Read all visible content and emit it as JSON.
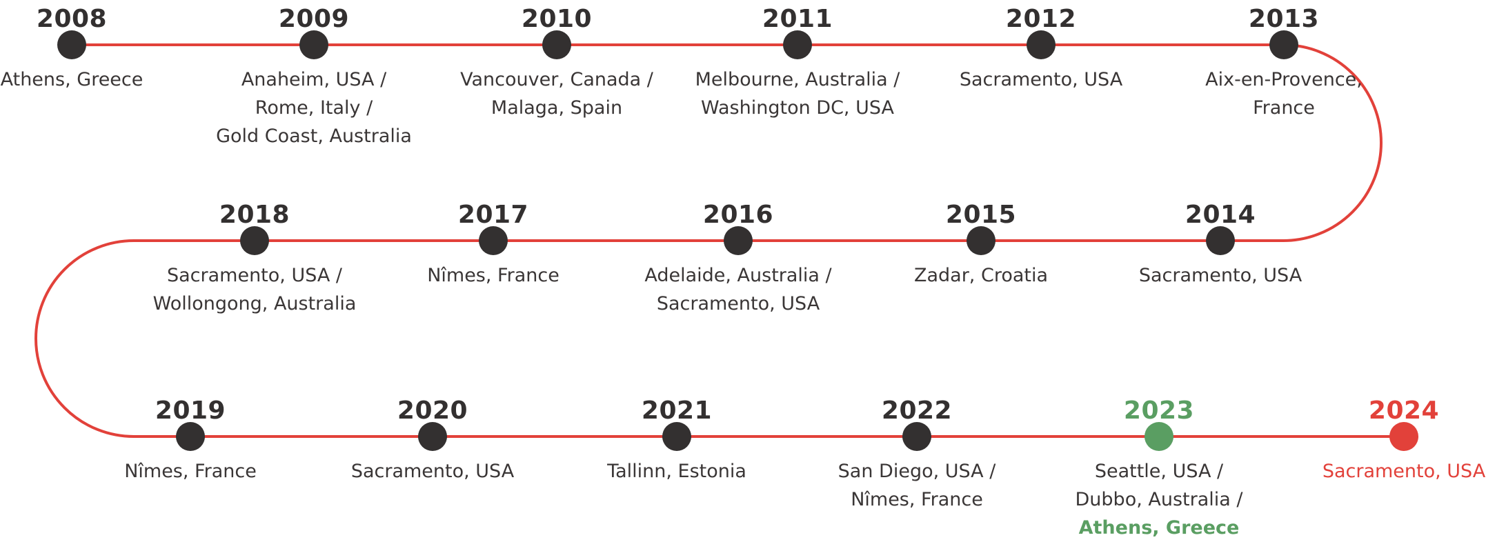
{
  "colors": {
    "line": "#e2413a",
    "node": "#333030",
    "green": "#5a9e62",
    "red": "#e2413a"
  },
  "events": [
    {
      "year": "2008",
      "locations": [
        "Athens, Greece"
      ]
    },
    {
      "year": "2009",
      "locations": [
        "Anaheim, USA /",
        "Rome, Italy /",
        "Gold Coast, Australia"
      ]
    },
    {
      "year": "2010",
      "locations": [
        "Vancouver, Canada /",
        "Malaga, Spain"
      ]
    },
    {
      "year": "2011",
      "locations": [
        "Melbourne, Australia /",
        "Washington DC, USA"
      ]
    },
    {
      "year": "2012",
      "locations": [
        "Sacramento, USA"
      ]
    },
    {
      "year": "2013",
      "locations": [
        "Aix-en-Provence,",
        "France"
      ]
    },
    {
      "year": "2014",
      "locations": [
        "Sacramento, USA"
      ]
    },
    {
      "year": "2015",
      "locations": [
        "Zadar, Croatia"
      ]
    },
    {
      "year": "2016",
      "locations": [
        "Adelaide, Australia /",
        "Sacramento, USA"
      ]
    },
    {
      "year": "2017",
      "locations": [
        "Nîmes, France"
      ]
    },
    {
      "year": "2018",
      "locations": [
        "Sacramento, USA /",
        "Wollongong, Australia"
      ]
    },
    {
      "year": "2019",
      "locations": [
        "Nîmes, France"
      ]
    },
    {
      "year": "2020",
      "locations": [
        "Sacramento, USA"
      ]
    },
    {
      "year": "2021",
      "locations": [
        "Tallinn, Estonia"
      ]
    },
    {
      "year": "2022",
      "locations": [
        "San Diego, USA /",
        "Nîmes, France"
      ]
    },
    {
      "year": "2023",
      "locations": [
        "Seattle, USA /",
        "Dubbo, Australia /",
        "Athens, Greece"
      ],
      "highlight": "green"
    },
    {
      "year": "2024",
      "locations": [
        "Sacramento, USA"
      ],
      "highlight": "red"
    }
  ]
}
